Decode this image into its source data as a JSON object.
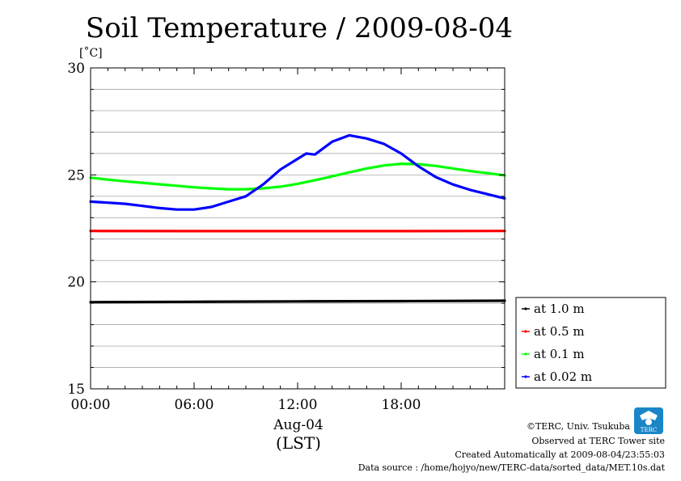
{
  "chart_data": {
    "type": "line",
    "title": "Soil Temperature / 2009-08-04",
    "yunit": "[˚C]",
    "xlabel_date": "Aug-04",
    "xlabel_tz": "(LST)",
    "xlim": [
      0,
      24
    ],
    "ylim": [
      15,
      30
    ],
    "x_ticks": [
      {
        "value": 0,
        "label": "00:00"
      },
      {
        "value": 6,
        "label": "06:00"
      },
      {
        "value": 12,
        "label": "12:00"
      },
      {
        "value": 18,
        "label": "18:00"
      }
    ],
    "y_ticks": [
      {
        "value": 15,
        "label": "15"
      },
      {
        "value": 20,
        "label": "20"
      },
      {
        "value": 25,
        "label": "25"
      },
      {
        "value": 30,
        "label": "30"
      }
    ],
    "grid": true,
    "legend_position": "right-bottom-outside",
    "series": [
      {
        "name": "at 1.0 m",
        "color": "#000000",
        "x": [
          0,
          6,
          12,
          18,
          24
        ],
        "y": [
          19.05,
          19.07,
          19.09,
          19.1,
          19.12
        ]
      },
      {
        "name": "at 0.5 m",
        "color": "#ff0000",
        "x": [
          0,
          6,
          12,
          18,
          24
        ],
        "y": [
          22.38,
          22.37,
          22.37,
          22.37,
          22.38
        ]
      },
      {
        "name": "at 0.1 m",
        "color": "#00ff00",
        "x": [
          0,
          1,
          2,
          3,
          4,
          5,
          6,
          7,
          8,
          9,
          10,
          11,
          12,
          13,
          14,
          15,
          16,
          17,
          18,
          19,
          20,
          21,
          22,
          23,
          24
        ],
        "y": [
          24.87,
          24.78,
          24.7,
          24.63,
          24.56,
          24.49,
          24.42,
          24.37,
          24.33,
          24.33,
          24.37,
          24.45,
          24.58,
          24.75,
          24.93,
          25.12,
          25.3,
          25.44,
          25.52,
          25.5,
          25.42,
          25.3,
          25.18,
          25.08,
          24.98
        ]
      },
      {
        "name": "at 0.02 m",
        "color": "#0000ff",
        "x": [
          0,
          1,
          2,
          3,
          4,
          5,
          6,
          7,
          8,
          9,
          10,
          10.5,
          11,
          12,
          12.5,
          13,
          14,
          15,
          16,
          17,
          18,
          19,
          20,
          21,
          22,
          23,
          24
        ],
        "y": [
          23.75,
          23.7,
          23.65,
          23.55,
          23.45,
          23.38,
          23.38,
          23.5,
          23.75,
          24.0,
          24.55,
          24.9,
          25.25,
          25.75,
          26.0,
          25.95,
          26.55,
          26.85,
          26.7,
          26.45,
          26.0,
          25.4,
          24.9,
          24.55,
          24.3,
          24.1,
          23.9
        ]
      }
    ]
  },
  "footer": {
    "copyright": "©TERC, Univ. Tsukuba",
    "site": "Observed at TERC Tower site",
    "created": "Created Automatically at 2009-08-04/23:55:03",
    "source": "Data source : /home/hojyo/new/TERC-data/sorted_data/MET.10s.dat"
  },
  "logo": {
    "text": "TERC",
    "color": "#1a86c8"
  }
}
